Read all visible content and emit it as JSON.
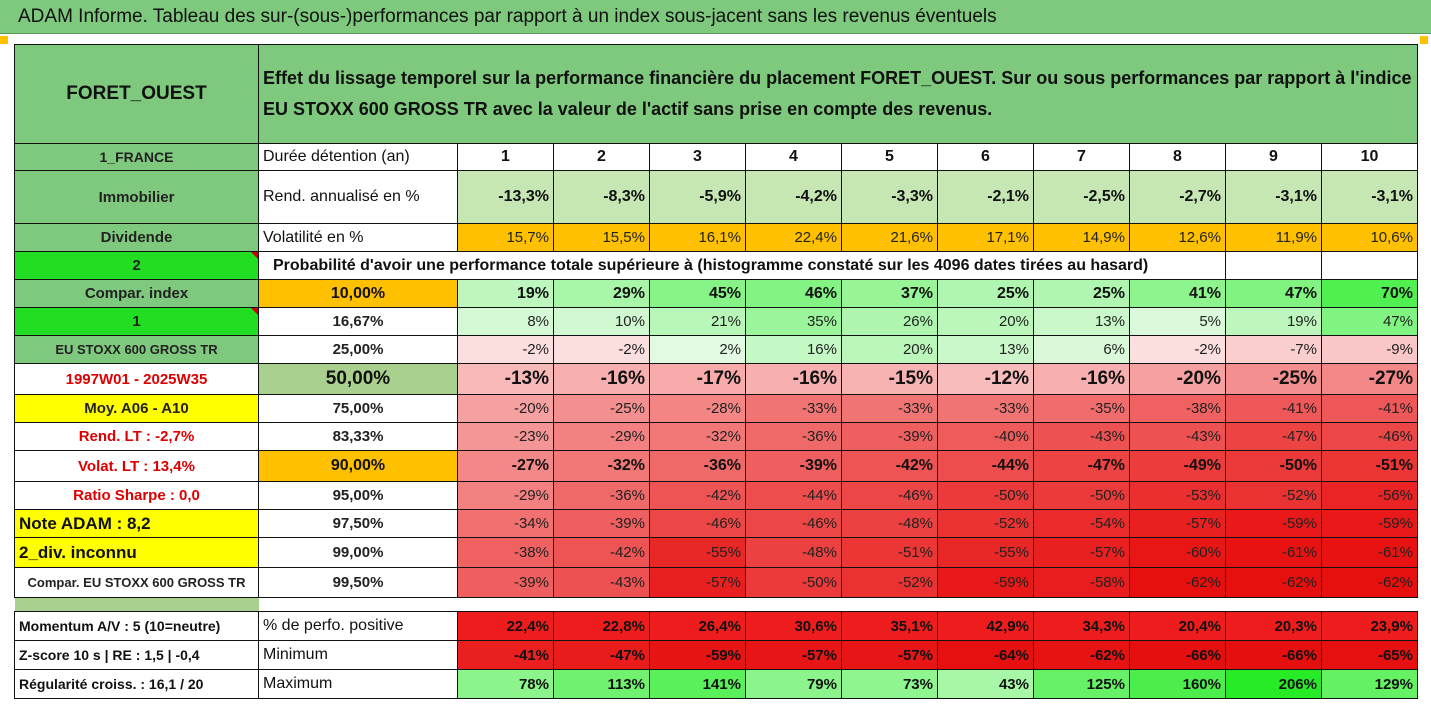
{
  "title": "ADAM Informe. Tableau des sur-(sous-)performances par rapport à un index sous-jacent sans les revenus éventuels",
  "asset": "FORET_OUEST",
  "description": "Effet du lissage temporel sur la performance financière du placement FORET_OUEST. Sur ou sous performances par rapport à l'indice EU STOXX 600 GROSS TR avec la valeur de l'actif sans prise en compte des revenus.",
  "holding_label": "Durée détention (an)",
  "years": [
    "1",
    "2",
    "3",
    "4",
    "5",
    "6",
    "7",
    "8",
    "9",
    "10"
  ],
  "left": {
    "country": "1_FRANCE",
    "category": "Immobilier",
    "dividend": "Dividende",
    "num2": "2",
    "compar_index": "Compar. index",
    "num1": "1",
    "index_name": "EU STOXX 600 GROSS TR",
    "period": "1997W01 - 2025W35",
    "moy": "Moy. A06 - A10",
    "rend_lt": "Rend. LT :   -2,7%",
    "volat_lt": "Volat. LT :   13,4%",
    "sharpe": "Ratio Sharpe :   0,0",
    "note": "Note ADAM : 8,2",
    "div": "2_div. inconnu",
    "compar_full": "Compar. EU STOXX 600 GROSS TR",
    "momentum": "Momentum A/V : 5 (10=neutre)",
    "zscore": "Z-score 10 s  | RE : 1,5  | -0,4",
    "regularite": "Régularité croiss. : 16,1 / 20"
  },
  "rend_label": "Rend. annualisé en %",
  "rend_values": [
    "-13,3%",
    "-8,3%",
    "-5,9%",
    "-4,2%",
    "-3,3%",
    "-2,1%",
    "-2,5%",
    "-2,7%",
    "-3,1%",
    "-3,1%"
  ],
  "vol_label": "Volatilité en %",
  "vol_values": [
    "15,7%",
    "15,5%",
    "16,1%",
    "22,4%",
    "21,6%",
    "17,1%",
    "14,9%",
    "12,6%",
    "11,9%",
    "10,6%"
  ],
  "prob_header": "Probabilité d'avoir une performance totale supérieure à (histogramme constaté sur les 4096 dates tirées au hasard)",
  "quantiles": [
    {
      "p": "10,00%",
      "v": [
        "19%",
        "29%",
        "45%",
        "46%",
        "37%",
        "25%",
        "25%",
        "41%",
        "47%",
        "70%"
      ]
    },
    {
      "p": "16,67%",
      "v": [
        "8%",
        "10%",
        "21%",
        "35%",
        "26%",
        "20%",
        "13%",
        "5%",
        "19%",
        "47%"
      ]
    },
    {
      "p": "25,00%",
      "v": [
        "-2%",
        "-2%",
        "2%",
        "16%",
        "20%",
        "13%",
        "6%",
        "-2%",
        "-7%",
        "-9%"
      ]
    },
    {
      "p": "50,00%",
      "v": [
        "-13%",
        "-16%",
        "-17%",
        "-16%",
        "-15%",
        "-12%",
        "-16%",
        "-20%",
        "-25%",
        "-27%"
      ]
    },
    {
      "p": "75,00%",
      "v": [
        "-20%",
        "-25%",
        "-28%",
        "-33%",
        "-33%",
        "-33%",
        "-35%",
        "-38%",
        "-41%",
        "-41%"
      ]
    },
    {
      "p": "83,33%",
      "v": [
        "-23%",
        "-29%",
        "-32%",
        "-36%",
        "-39%",
        "-40%",
        "-43%",
        "-43%",
        "-47%",
        "-46%"
      ]
    },
    {
      "p": "90,00%",
      "v": [
        "-27%",
        "-32%",
        "-36%",
        "-39%",
        "-42%",
        "-44%",
        "-47%",
        "-49%",
        "-50%",
        "-51%"
      ]
    },
    {
      "p": "95,00%",
      "v": [
        "-29%",
        "-36%",
        "-42%",
        "-44%",
        "-46%",
        "-50%",
        "-50%",
        "-53%",
        "-52%",
        "-56%"
      ]
    },
    {
      "p": "97,50%",
      "v": [
        "-34%",
        "-39%",
        "-46%",
        "-46%",
        "-48%",
        "-52%",
        "-54%",
        "-57%",
        "-59%",
        "-59%"
      ]
    },
    {
      "p": "99,00%",
      "v": [
        "-38%",
        "-42%",
        "-55%",
        "-48%",
        "-51%",
        "-55%",
        "-57%",
        "-60%",
        "-61%",
        "-61%"
      ]
    },
    {
      "p": "99,50%",
      "v": [
        "-39%",
        "-43%",
        "-57%",
        "-50%",
        "-52%",
        "-59%",
        "-58%",
        "-62%",
        "-62%",
        "-62%"
      ]
    }
  ],
  "pos_label": "% de perfo. positive",
  "pos_values": [
    "22,4%",
    "22,8%",
    "26,4%",
    "30,6%",
    "35,1%",
    "42,9%",
    "34,3%",
    "20,4%",
    "20,3%",
    "23,9%"
  ],
  "min_label": "Minimum",
  "min_values": [
    "-41%",
    "-47%",
    "-59%",
    "-57%",
    "-57%",
    "-64%",
    "-62%",
    "-66%",
    "-66%",
    "-65%"
  ],
  "max_label": "Maximum",
  "max_values": [
    "78%",
    "113%",
    "141%",
    "79%",
    "73%",
    "43%",
    "125%",
    "160%",
    "206%",
    "129%"
  ],
  "colors": {
    "header_green": "#7fc97f",
    "bright_green": "#22dd22",
    "highlight_yellow": "#ffff00",
    "highlight_orange": "#ffc000",
    "period_red": "#dd0000"
  }
}
